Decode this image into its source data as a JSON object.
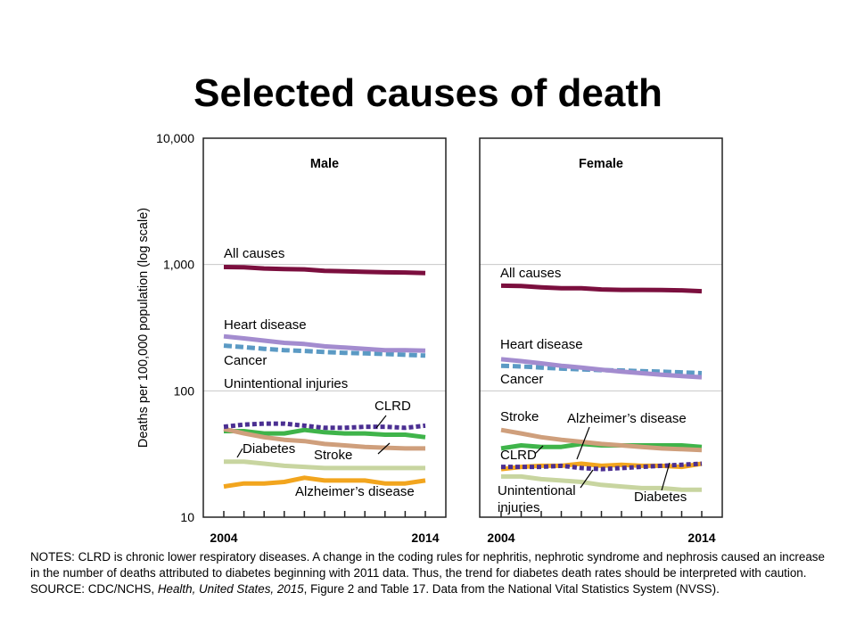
{
  "slide": {
    "title": "Selected causes of death"
  },
  "notes": {
    "notes_text": "NOTES: CLRD is chronic lower respiratory diseases. A change in the coding rules for nephritis, nephrotic syndrome and nephrosis caused an increase in the number of deaths attributed to diabetes beginning with 2011 data. Thus, the trend for diabetes death rates should be interpreted with caution.",
    "source_prefix": "SOURCE: CDC/NCHS, ",
    "source_italic": "Health, United States, 2015",
    "source_suffix": ", Figure 2 and Table 17.  Data from the National Vital Statistics System (NVSS)."
  },
  "colors": {
    "all_causes": "#7b0f3e",
    "heart_disease": "#a38ccf",
    "cancer": "#5b9ac4",
    "unintentional_injuries": "#c8d5a0",
    "clrd": "#4b2f92",
    "stroke": "#cf9f7c",
    "diabetes": "#c8d5a0",
    "alzheimers": "#f2a51e",
    "grid": "#c8c8c8"
  },
  "chart_data": {
    "type": "line",
    "scale": "log",
    "ylabel": "Deaths per 100,000 population (log scale)",
    "ylim": [
      10,
      10000
    ],
    "yticks": [
      "10",
      "100",
      "1,000",
      "10,000"
    ],
    "x": [
      2004,
      2005,
      2006,
      2007,
      2008,
      2009,
      2010,
      2011,
      2012,
      2013,
      2014
    ],
    "xtick_labels": [
      "2004",
      "2014"
    ],
    "grid": true,
    "panels": [
      {
        "title": "Male",
        "series": [
          {
            "name": "All causes",
            "key": "all_causes",
            "style": "solid",
            "values": [
              955,
              952,
              930,
              920,
              915,
              890,
              885,
              875,
              868,
              865,
              855
            ]
          },
          {
            "name": "Heart disease",
            "key": "heart_disease",
            "style": "solid",
            "values": [
              270,
              260,
              250,
              240,
              235,
              225,
              220,
              215,
              210,
              210,
              208
            ]
          },
          {
            "name": "Cancer",
            "key": "cancer",
            "style": "dashed",
            "values": [
              228,
              222,
              215,
              210,
              207,
              203,
              200,
              198,
              196,
              193,
              190
            ]
          },
          {
            "name": "Unintentional injuries",
            "key": "unintentional_injuries",
            "style": "solid",
            "values": [
              null,
              null,
              null,
              null,
              null,
              null,
              null,
              null,
              null,
              null,
              null
            ]
          },
          {
            "name": "CLRD",
            "key": "clrd",
            "style": "dotted",
            "values": [
              52,
              54,
              55,
              55,
              53,
              51,
              51,
              52,
              52,
              51,
              53
            ]
          },
          {
            "name": "Stroke",
            "key": "stroke",
            "style": "solid",
            "values": [
              50,
              46,
              43,
              41,
              40,
              38,
              37,
              36,
              35.5,
              35,
              35
            ]
          },
          {
            "name": "Diabetes",
            "key": "diabetes",
            "style": "solid",
            "values": [
              27.5,
              27.5,
              26.5,
              25.5,
              25,
              24.5,
              24.5,
              24.5,
              24.5,
              24.5,
              24.5
            ]
          },
          {
            "name": "Alzheimer's disease",
            "key": "alzheimers",
            "style": "solid",
            "values": [
              17.5,
              18.5,
              18.5,
              19,
              20.5,
              19.5,
              19.5,
              19.5,
              18.5,
              18.5,
              19.5
            ]
          }
        ],
        "green_series": {
          "key": "unintentional_injuries_line",
          "values": [
            48,
            48,
            46,
            46,
            49,
            47,
            46,
            46,
            45,
            45,
            43
          ]
        }
      },
      {
        "title": "Female",
        "series": [
          {
            "name": "All causes",
            "key": "all_causes",
            "style": "solid",
            "values": [
              680,
              675,
              660,
              650,
              650,
              635,
              630,
              630,
              628,
              625,
              615
            ]
          },
          {
            "name": "Heart disease",
            "key": "heart_disease",
            "style": "solid",
            "values": [
              178,
              172,
              165,
              158,
              153,
              147,
              142,
              138,
              134,
              131,
              128
            ]
          },
          {
            "name": "Cancer",
            "key": "cancer",
            "style": "dashed",
            "values": [
              158,
              156,
              153,
              150,
              148,
              146,
              145,
              143,
              142,
              140,
              138
            ]
          },
          {
            "name": "Stroke",
            "key": "stroke",
            "style": "solid",
            "values": [
              49,
              46,
              43,
              41,
              39.5,
              38,
              37,
              36,
              35,
              34.5,
              34
            ]
          },
          {
            "name": "Alzheimer's disease",
            "key": "alzheimers",
            "style": "solid",
            "values": [
              24,
              25,
              25.5,
              25.5,
              26.5,
              25.5,
              26,
              25.5,
              25.5,
              25,
              26.5
            ]
          },
          {
            "name": "CLRD",
            "key": "clrd",
            "style": "dotted",
            "values": [
              25,
              25,
              25,
              25.5,
              24.5,
              24,
              24.5,
              25,
              25.5,
              26,
              26.5
            ]
          },
          {
            "name": "Unintentional injuries",
            "key": "unintentional_injuries",
            "style": "solid",
            "values": [
              21,
              21,
              20,
              19.5,
              19,
              18,
              17.5,
              17,
              17,
              16.5,
              16.5
            ]
          },
          {
            "name": "Diabetes",
            "key": "diabetes",
            "style": "solid",
            "values": [
              null,
              null,
              null,
              null,
              null,
              null,
              null,
              null,
              null,
              null,
              null
            ]
          }
        ],
        "green_series": {
          "key": "unintentional_injuries_line",
          "values": [
            35,
            37,
            36,
            36,
            38,
            37,
            37,
            37,
            37,
            37,
            36
          ]
        }
      }
    ],
    "labels": {
      "male": {
        "all_causes": "All causes",
        "heart_disease": "Heart disease",
        "cancer": "Cancer",
        "unintentional_injuries": "Unintentional injuries",
        "clrd": "CLRD",
        "diabetes": "Diabetes",
        "stroke": "Stroke",
        "alzheimers": "Alzheimer’s disease"
      },
      "female": {
        "all_causes": "All causes",
        "heart_disease": "Heart disease",
        "cancer": "Cancer",
        "stroke": "Stroke",
        "alzheimers": "Alzheimer’s disease",
        "clrd": "CLRD",
        "unintentional_injuries_line1": "Unintentional",
        "unintentional_injuries_line2": "injuries",
        "diabetes": "Diabetes"
      }
    }
  }
}
